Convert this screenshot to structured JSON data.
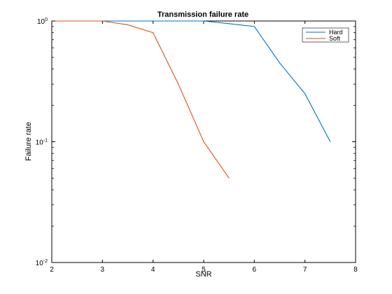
{
  "chart_data": {
    "type": "line",
    "title": "Transmission failure rate",
    "xlabel": "SNR",
    "ylabel": "Failure rate",
    "xlim": [
      2,
      8
    ],
    "ylim": [
      0.01,
      1
    ],
    "yscale": "log",
    "grid": false,
    "legend_position": "top-right",
    "x_ticks": [
      2,
      3,
      4,
      5,
      6,
      7,
      8
    ],
    "y_ticks": [
      {
        "value": 0.01,
        "base": "10",
        "exp": "-2"
      },
      {
        "value": 0.1,
        "base": "10",
        "exp": "-1"
      },
      {
        "value": 1,
        "base": "10",
        "exp": "0"
      }
    ],
    "series": [
      {
        "name": "Hard",
        "color": "#0072BD",
        "x": [
          2,
          3,
          4,
          5,
          5.5,
          6,
          6.5,
          7,
          7.5
        ],
        "y": [
          1,
          1,
          1,
          1,
          0.95,
          0.9,
          0.45,
          0.25,
          0.1
        ]
      },
      {
        "name": "Soft",
        "color": "#D95319",
        "x": [
          2,
          3,
          3.5,
          4,
          4.5,
          5,
          5.5
        ],
        "y": [
          1,
          1,
          0.93,
          0.8,
          0.3,
          0.1,
          0.05
        ]
      }
    ]
  }
}
